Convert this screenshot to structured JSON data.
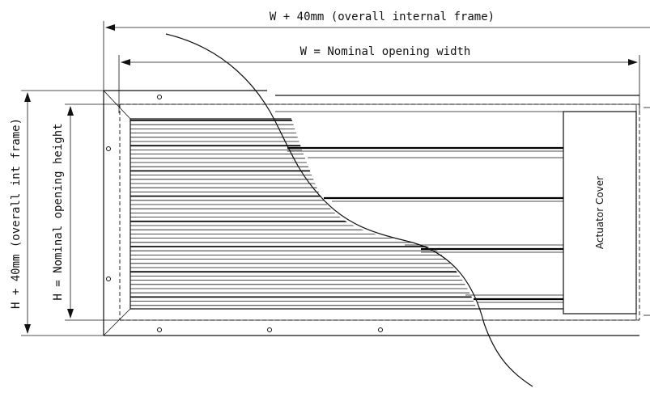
{
  "dimensions": {
    "overall_width": "W + 40mm (overall internal frame)",
    "nominal_width": "W = Nominal opening width",
    "overall_height": "H + 40mm (overall int frame)",
    "nominal_height": "H = Nominal opening height"
  },
  "labels": {
    "actuator_cover": "Actuator Cover"
  },
  "colors": {
    "line": "#111111",
    "background": "#ffffff"
  }
}
